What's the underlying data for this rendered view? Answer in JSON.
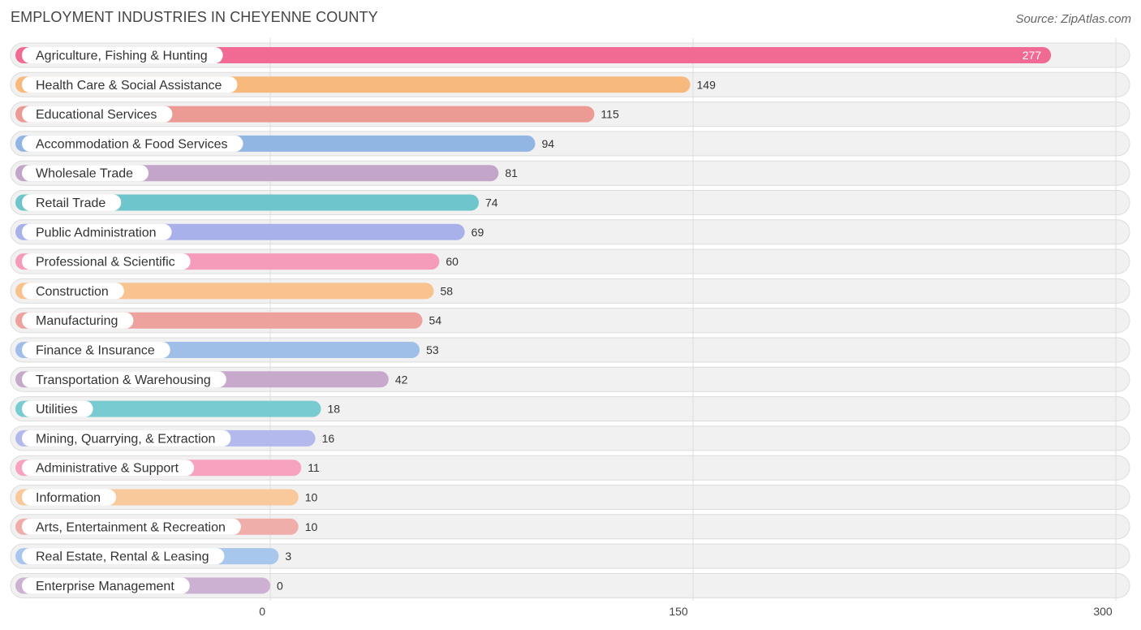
{
  "header": {
    "title": "EMPLOYMENT INDUSTRIES IN CHEYENNE COUNTY",
    "source": "Source: ZipAtlas.com"
  },
  "chart_data": {
    "type": "bar",
    "orientation": "horizontal",
    "title": "EMPLOYMENT INDUSTRIES IN CHEYENNE COUNTY",
    "xlabel": "",
    "ylabel": "",
    "xlim": [
      0,
      300
    ],
    "ticks": [
      0,
      150,
      300
    ],
    "tick_labels": [
      "0",
      "150",
      "300"
    ],
    "grid": true,
    "categories": [
      "Agriculture, Fishing & Hunting",
      "Health Care & Social Assistance",
      "Educational Services",
      "Accommodation & Food Services",
      "Wholesale Trade",
      "Retail Trade",
      "Public Administration",
      "Professional & Scientific",
      "Construction",
      "Manufacturing",
      "Finance & Insurance",
      "Transportation & Warehousing",
      "Utilities",
      "Mining, Quarrying, & Extraction",
      "Administrative & Support",
      "Information",
      "Arts, Entertainment & Recreation",
      "Real Estate, Rental & Leasing",
      "Enterprise Management"
    ],
    "values": [
      277,
      149,
      115,
      94,
      81,
      74,
      69,
      60,
      58,
      54,
      53,
      42,
      18,
      16,
      11,
      10,
      10,
      3,
      0
    ],
    "value_labels": [
      "277",
      "149",
      "115",
      "94",
      "81",
      "74",
      "69",
      "60",
      "58",
      "54",
      "53",
      "42",
      "18",
      "16",
      "11",
      "10",
      "10",
      "3",
      "0"
    ],
    "colors": [
      "#f06a94",
      "#f8ba7c",
      "#ec9a94",
      "#91b6e4",
      "#c3a5ca",
      "#6ec5cc",
      "#a9b1ea",
      "#f59cba",
      "#f8c38f",
      "#eea29d",
      "#9fbfe8",
      "#c7a9cc",
      "#78cbd0",
      "#b3b9ec",
      "#f7a3c0",
      "#f9c99c",
      "#f0aeab",
      "#a8c7ec",
      "#cdb1d2"
    ]
  }
}
